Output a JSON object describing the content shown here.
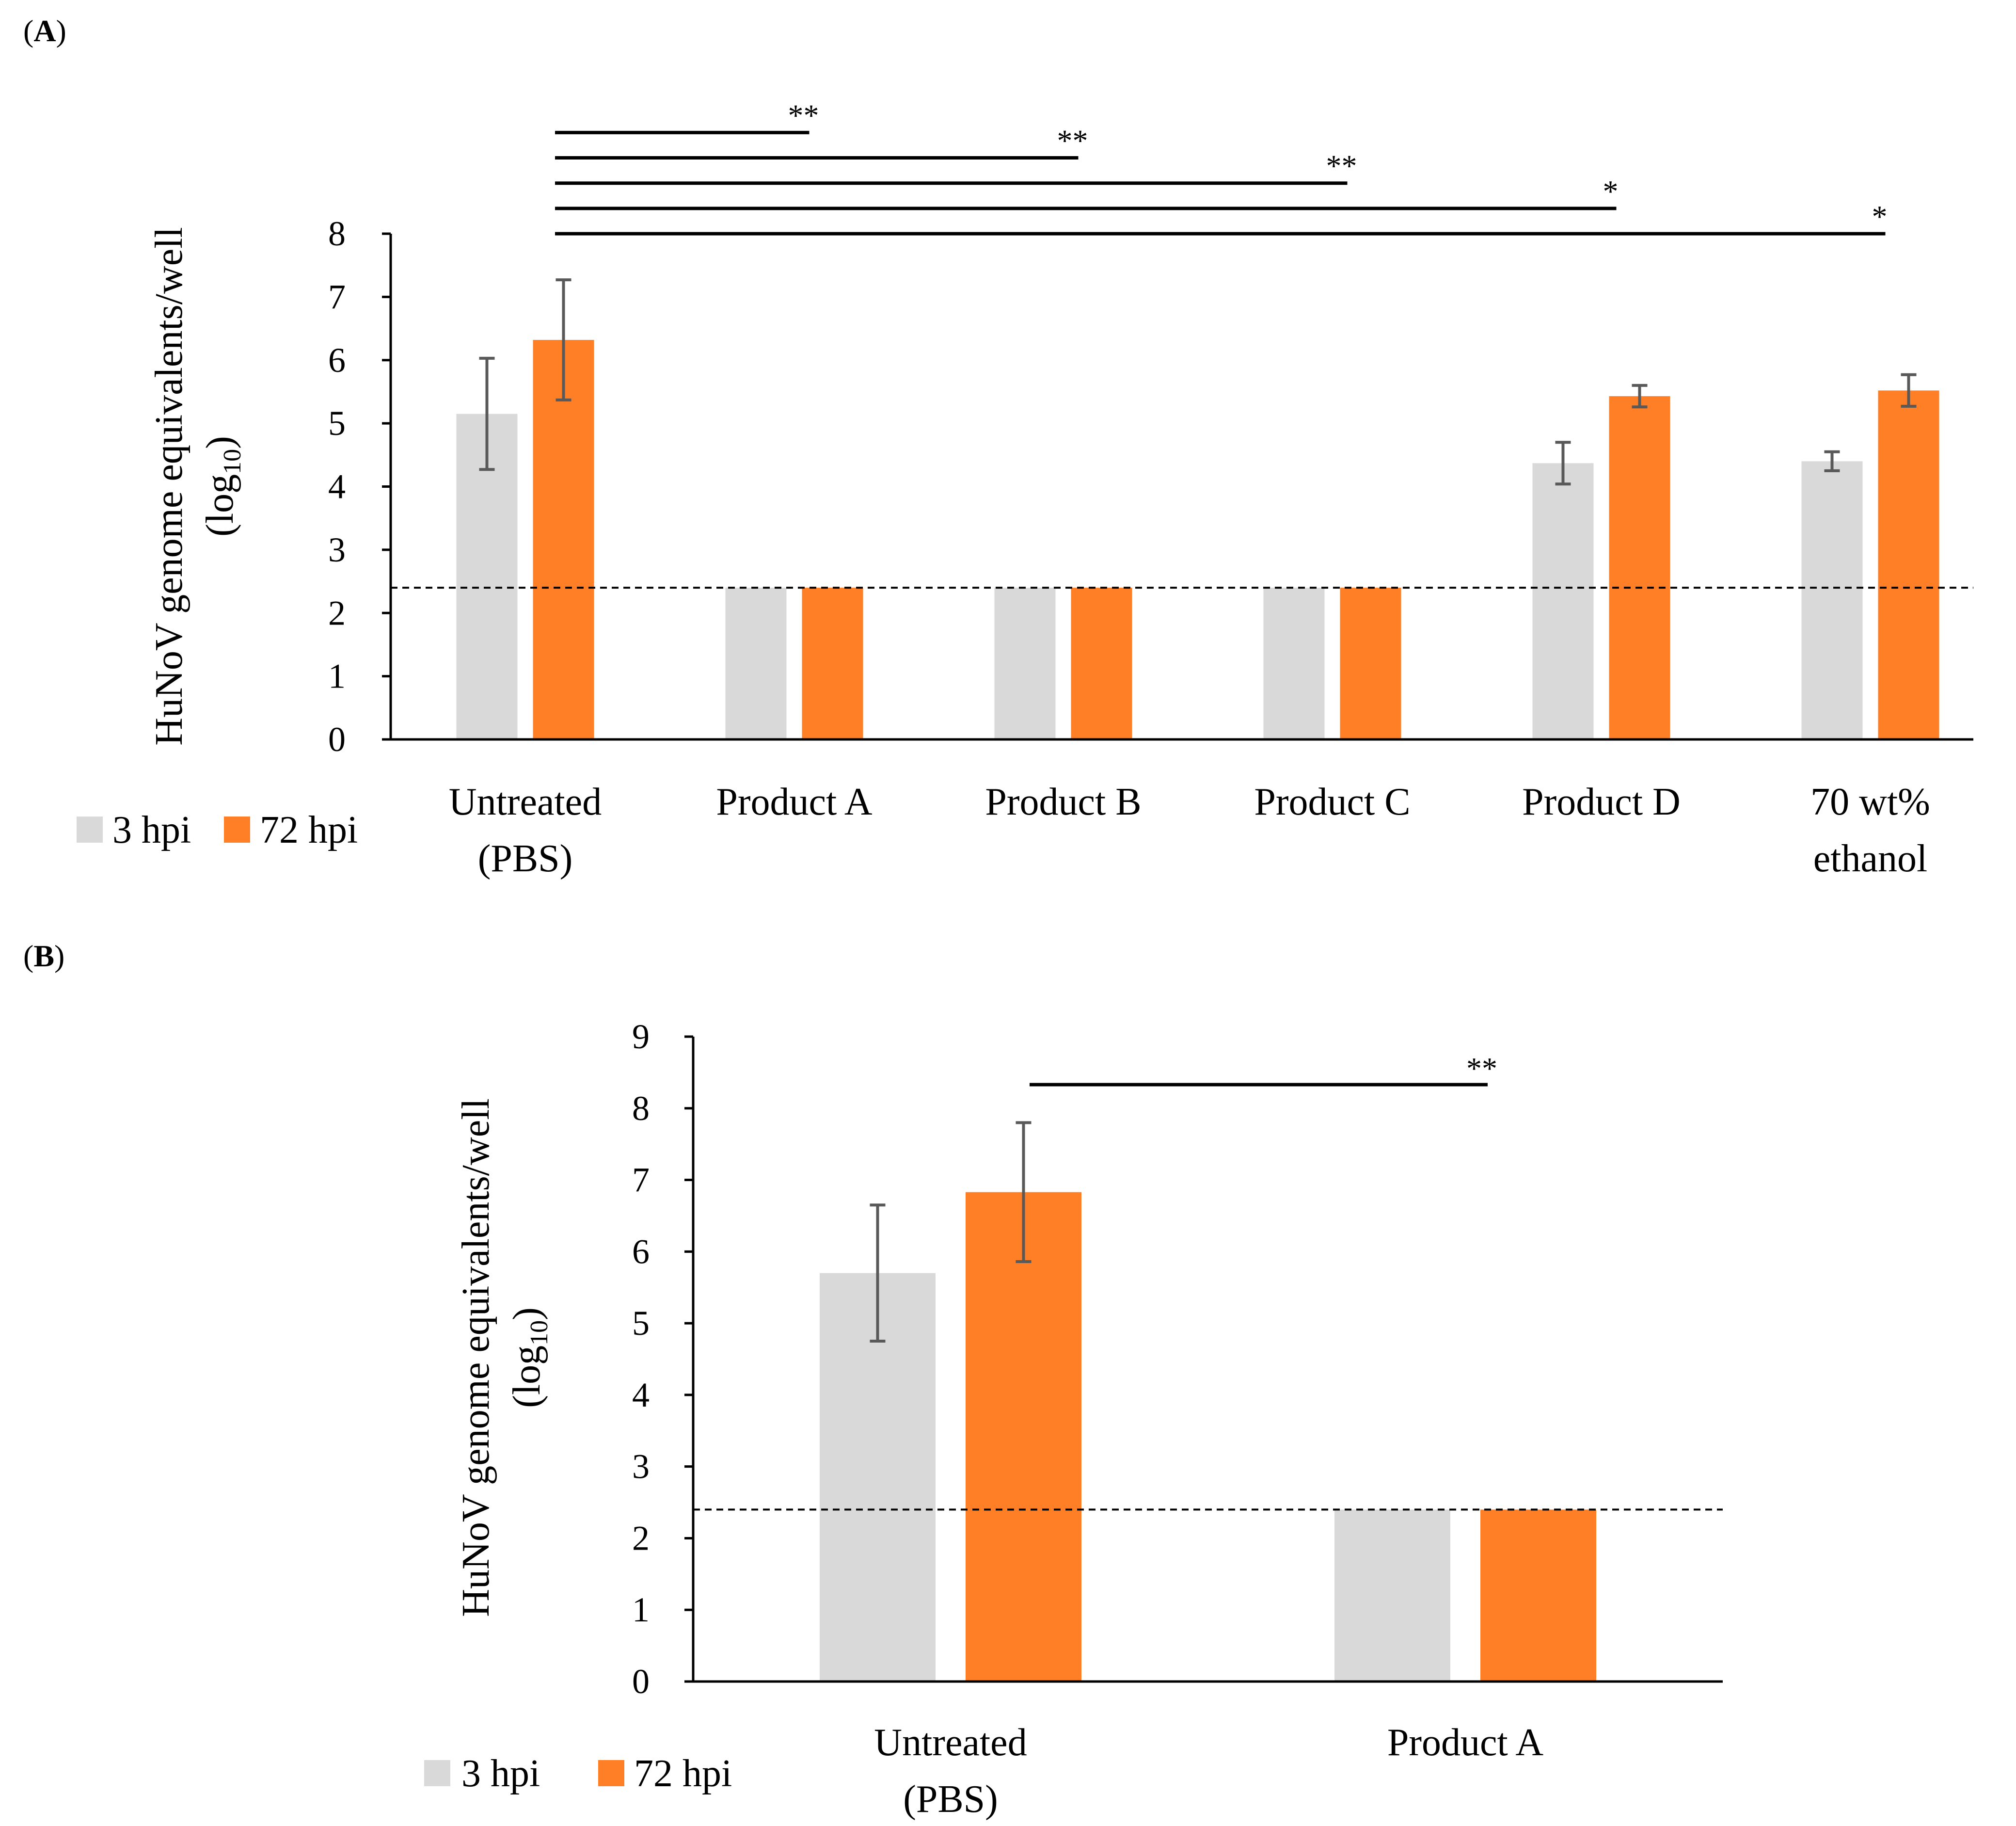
{
  "chart_data": [
    {
      "type": "bar",
      "panel_label": "A",
      "ylabel": "HuNoV genome equivalents/well",
      "ylabel_line2": "(log",
      "ylabel_sub": "10",
      "ylabel_close": ")",
      "ylim": [
        0,
        8
      ],
      "yticks": [
        "0",
        "1",
        "2",
        "3",
        "4",
        "5",
        "6",
        "7",
        "8"
      ],
      "categories": [
        {
          "line1": "Untreated",
          "line2": "(PBS)"
        },
        {
          "line1": "Product A",
          "line2": ""
        },
        {
          "line1": "Product B",
          "line2": ""
        },
        {
          "line1": "Product C",
          "line2": ""
        },
        {
          "line1": "Product D",
          "line2": ""
        },
        {
          "line1": "70 wt%",
          "line2": "ethanol"
        }
      ],
      "series": [
        {
          "name": "3 hpi",
          "color": "#d9d9d9",
          "values": [
            5.15,
            2.4,
            2.4,
            2.4,
            4.37,
            4.4
          ],
          "errors": [
            0.88,
            0,
            0,
            0,
            0.33,
            0.15
          ]
        },
        {
          "name": "72 hpi",
          "color": "#ff7f27",
          "values": [
            6.32,
            2.4,
            2.4,
            2.4,
            5.43,
            5.52
          ],
          "errors": [
            0.95,
            0,
            0,
            0,
            0.17,
            0.25
          ]
        }
      ],
      "detection_limit": 2.4,
      "legend_position": "bottom-left",
      "significance": [
        {
          "to": 1,
          "y": 9.6,
          "label": "**"
        },
        {
          "to": 2,
          "y": 9.2,
          "label": "**"
        },
        {
          "to": 3,
          "y": 8.8,
          "label": "**"
        },
        {
          "to": 4,
          "y": 8.4,
          "label": "*"
        },
        {
          "to": 5,
          "y": 8.0,
          "label": "*"
        }
      ]
    },
    {
      "type": "bar",
      "panel_label": "B",
      "ylabel": "HuNoV genome equivalents/well",
      "ylabel_line2": "(log",
      "ylabel_sub": "10",
      "ylabel_close": ")",
      "ylim": [
        0,
        9
      ],
      "yticks": [
        "0",
        "1",
        "2",
        "3",
        "4",
        "5",
        "6",
        "7",
        "8",
        "9"
      ],
      "categories": [
        {
          "line1": "Untreated",
          "line2": "(PBS)"
        },
        {
          "line1": "Product A",
          "line2": ""
        }
      ],
      "series": [
        {
          "name": "3 hpi",
          "color": "#d9d9d9",
          "values": [
            5.7,
            2.4
          ],
          "errors": [
            0.95,
            0
          ]
        },
        {
          "name": "72 hpi",
          "color": "#ff7f27",
          "values": [
            6.83,
            2.4
          ],
          "errors": [
            0.97,
            0
          ]
        }
      ],
      "detection_limit": 2.4,
      "legend_position": "bottom-left",
      "significance": [
        {
          "to": 1,
          "y": 8.33,
          "label": "**"
        }
      ]
    }
  ]
}
